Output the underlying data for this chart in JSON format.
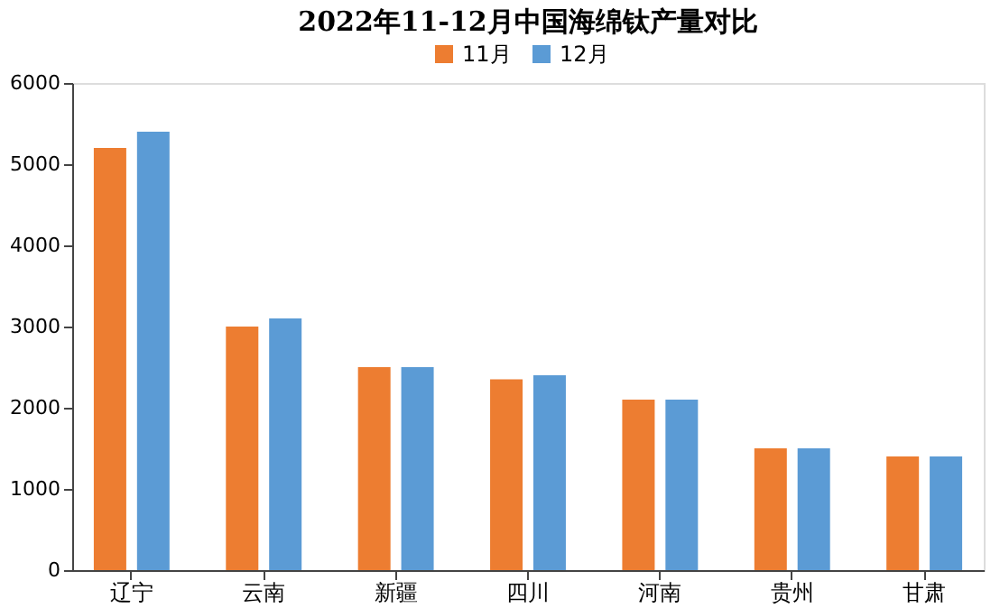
{
  "chart_data": {
    "type": "bar",
    "title": "2022年11-12月中国海绵钛产量对比",
    "categories": [
      "辽宁",
      "云南",
      "新疆",
      "四川",
      "河南",
      "贵州",
      "甘肃"
    ],
    "series": [
      {
        "name": "11月",
        "color": "#ed7d31",
        "values": [
          5200,
          3000,
          2500,
          2350,
          2100,
          1500,
          1400
        ]
      },
      {
        "name": "12月",
        "color": "#5b9bd5",
        "values": [
          5400,
          3100,
          2500,
          2400,
          2100,
          1500,
          1400
        ]
      }
    ],
    "ylim": [
      0,
      6000
    ],
    "yticks": [
      0,
      1000,
      2000,
      3000,
      4000,
      5000,
      6000
    ],
    "grid": false,
    "legend": "top"
  }
}
